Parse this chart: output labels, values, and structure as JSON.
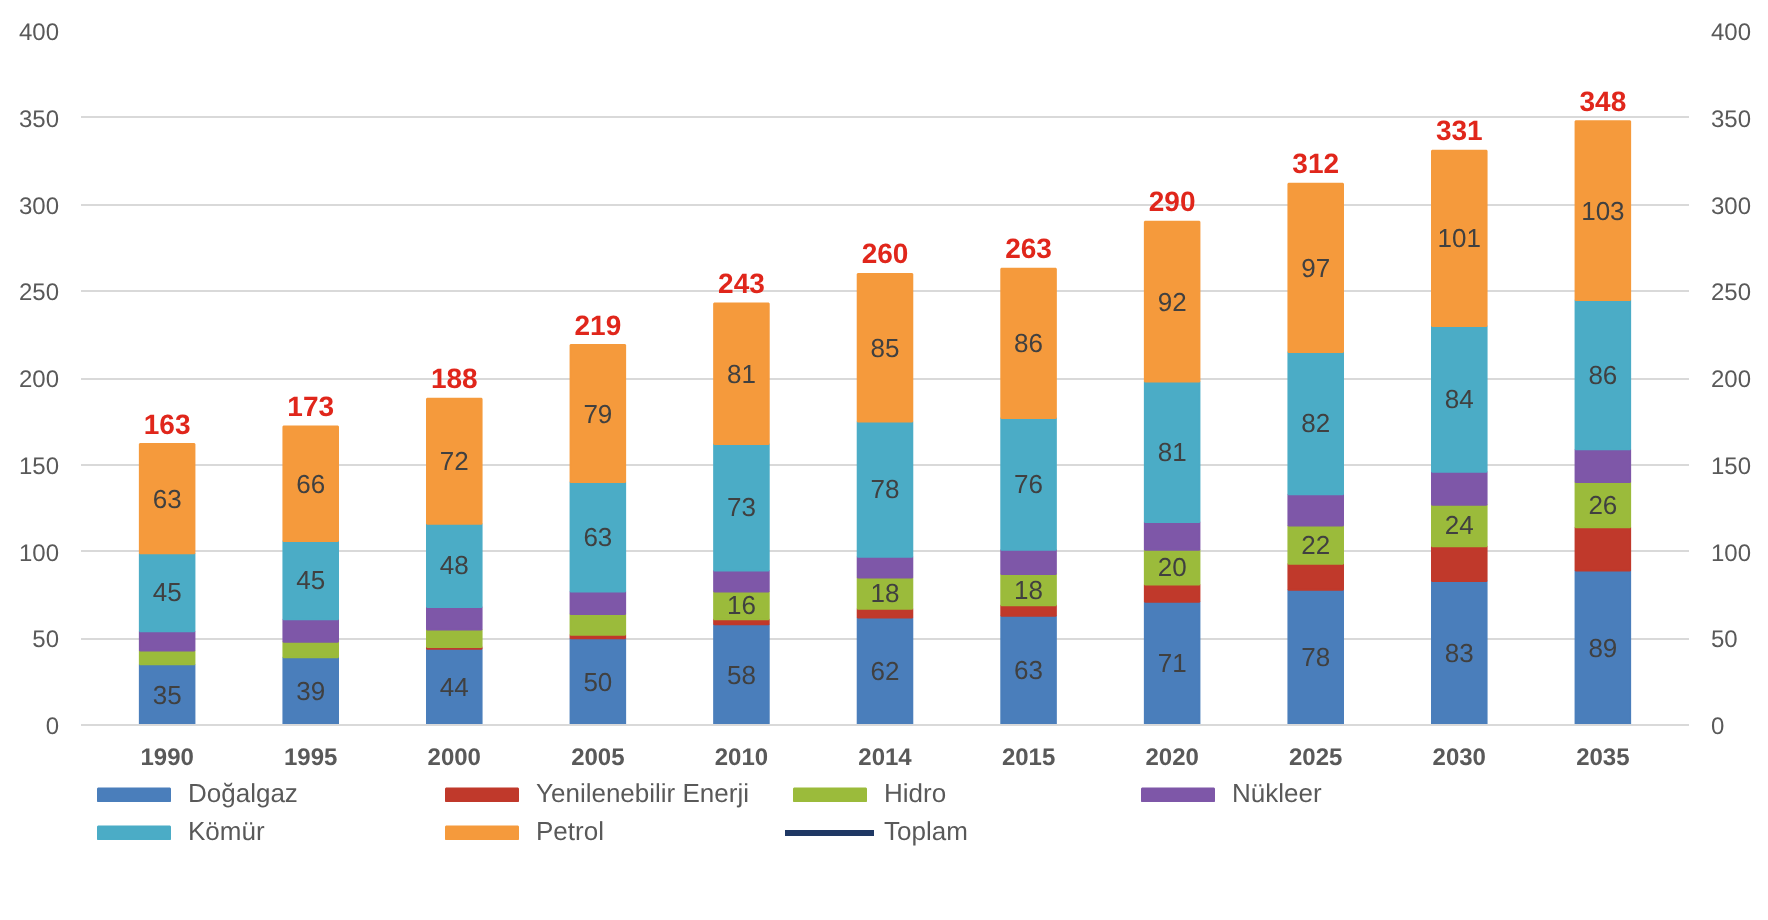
{
  "chart_data": {
    "type": "bar",
    "stacked": true,
    "categories": [
      "1990",
      "1995",
      "2000",
      "2005",
      "2010",
      "2014",
      "2015",
      "2020",
      "2025",
      "2030",
      "2035"
    ],
    "series": [
      {
        "name": "Doğalgaz",
        "color": "#4a7ebb",
        "values": [
          35,
          39,
          44,
          50,
          58,
          62,
          63,
          71,
          78,
          83,
          89
        ],
        "value_labels": [
          "35",
          "39",
          "44",
          "50",
          "58",
          "62",
          "63",
          "71",
          "78",
          "83",
          "89"
        ]
      },
      {
        "name": "Yenilenebilir Enerji",
        "color": "#c0392b",
        "values": [
          null,
          null,
          1,
          2,
          3,
          5,
          6,
          10,
          15,
          20,
          25
        ],
        "value_labels": [
          null,
          null,
          null,
          null,
          null,
          null,
          null,
          null,
          null,
          null,
          null
        ]
      },
      {
        "name": "Hidro",
        "color": "#9bbb3b",
        "values": [
          8,
          9,
          10,
          12,
          16,
          18,
          18,
          20,
          22,
          24,
          26
        ],
        "value_labels": [
          null,
          null,
          null,
          null,
          "16",
          "18",
          "18",
          "20",
          "22",
          "24",
          "26"
        ]
      },
      {
        "name": "Nükleer",
        "color": "#7e57a8",
        "values": [
          11,
          13,
          13,
          13,
          12,
          12,
          14,
          16,
          18,
          19,
          19
        ],
        "value_labels": [
          null,
          null,
          null,
          null,
          null,
          null,
          null,
          null,
          null,
          null,
          null
        ]
      },
      {
        "name": "Kömür",
        "color": "#4bacc6",
        "values": [
          45,
          45,
          48,
          63,
          73,
          78,
          76,
          81,
          82,
          84,
          86
        ],
        "value_labels": [
          "45",
          "45",
          "48",
          "63",
          "73",
          "78",
          "76",
          "81",
          "82",
          "84",
          "86"
        ]
      },
      {
        "name": "Petrol",
        "color": "#f59a3c",
        "values": [
          63,
          66,
          72,
          79,
          81,
          85,
          86,
          92,
          97,
          101,
          103
        ],
        "value_labels": [
          "63",
          "66",
          "72",
          "79",
          "81",
          "85",
          "86",
          "92",
          "97",
          "101",
          "103"
        ]
      },
      {
        "name": "Toplam",
        "type": "line",
        "color": "#1f3864",
        "values": [
          null,
          null,
          null,
          null,
          null,
          null,
          null,
          null,
          null,
          null,
          null
        ]
      }
    ],
    "totals": [
      "163",
      "173",
      "188",
      "219",
      "243",
      "260",
      "263",
      "290",
      "312",
      "331",
      "348"
    ],
    "ylim": [
      0,
      400
    ],
    "yticks": [
      0,
      50,
      100,
      150,
      200,
      250,
      300,
      350,
      400
    ],
    "y2lim": [
      0,
      400
    ],
    "y2ticks": [
      0,
      50,
      100,
      150,
      200,
      250,
      300,
      350,
      400
    ],
    "grid": "y",
    "legend": "bottom"
  }
}
